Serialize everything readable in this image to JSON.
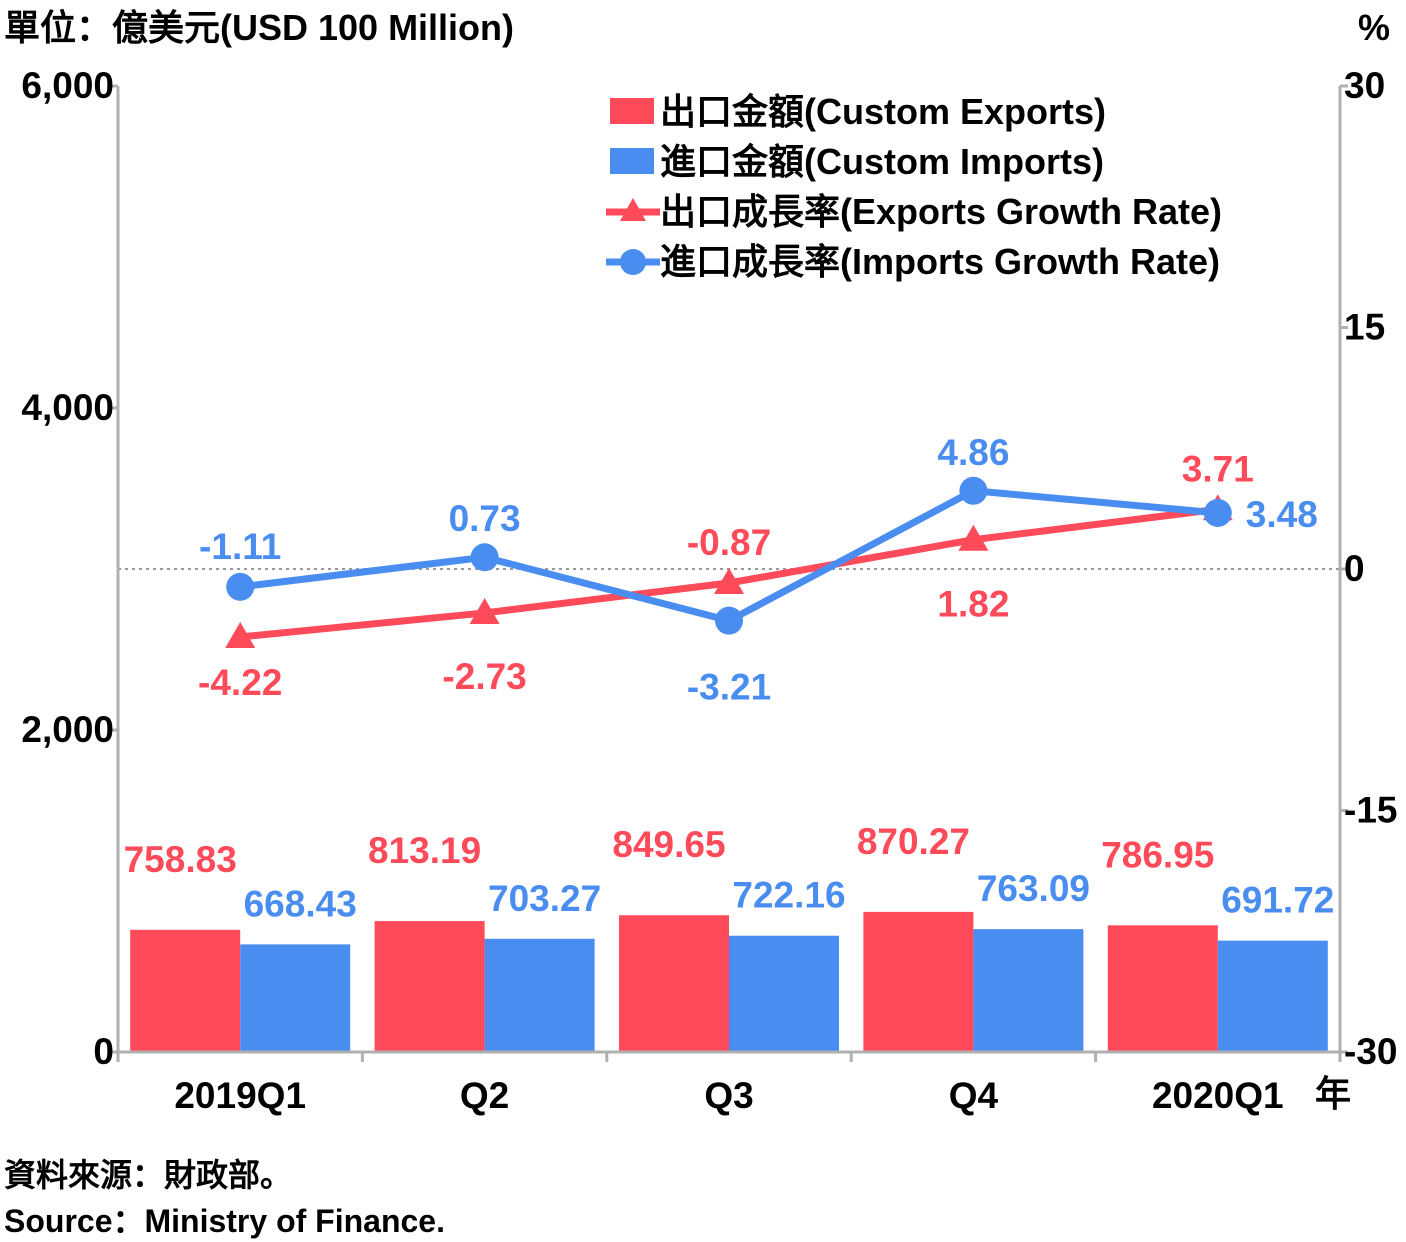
{
  "chart_data": {
    "type": "bar",
    "unit_left": "單位：億美元(USD 100 Million)",
    "unit_right": "%",
    "year_label": "年",
    "categories": [
      "2019Q1",
      "Q2",
      "Q3",
      "Q4",
      "2020Q1"
    ],
    "y_left": {
      "ylim": [
        0,
        6000
      ],
      "ticks": [
        "0",
        "2,000",
        "4,000",
        "6,000"
      ]
    },
    "y_right": {
      "ylim": [
        -30,
        30
      ],
      "ticks": [
        "-30",
        "-15",
        "0",
        "15",
        "30"
      ]
    },
    "series": [
      {
        "name": "出口金額(Custom Exports)",
        "type": "bar",
        "axis": "left",
        "color": "#ff4a5a",
        "values": [
          758.83,
          813.19,
          849.65,
          870.27,
          786.95
        ],
        "labels": [
          "758.83",
          "813.19",
          "849.65",
          "870.27",
          "786.95"
        ]
      },
      {
        "name": "進口金額(Custom Imports)",
        "type": "bar",
        "axis": "left",
        "color": "#4a8df0",
        "values": [
          668.43,
          703.27,
          722.16,
          763.09,
          691.72
        ],
        "labels": [
          "668.43",
          "703.27",
          "722.16",
          "763.09",
          "691.72"
        ]
      },
      {
        "name": "出口成長率(Exports Growth Rate)",
        "type": "line",
        "marker": "triangle",
        "axis": "right",
        "color": "#ff4a5a",
        "values": [
          -4.22,
          -2.73,
          -0.87,
          1.82,
          3.71
        ],
        "labels": [
          "-4.22",
          "-2.73",
          "-0.87",
          "1.82",
          "3.71"
        ]
      },
      {
        "name": "進口成長率(Imports Growth Rate)",
        "type": "line",
        "marker": "circle",
        "axis": "right",
        "color": "#4a8df0",
        "values": [
          -1.11,
          0.73,
          -3.21,
          4.86,
          3.48
        ],
        "labels": [
          "-1.11",
          "0.73",
          "-3.21",
          "4.86",
          "3.48"
        ]
      }
    ]
  },
  "source": {
    "zh": "資料來源：財政部。",
    "en": "Source：Ministry of Finance."
  }
}
